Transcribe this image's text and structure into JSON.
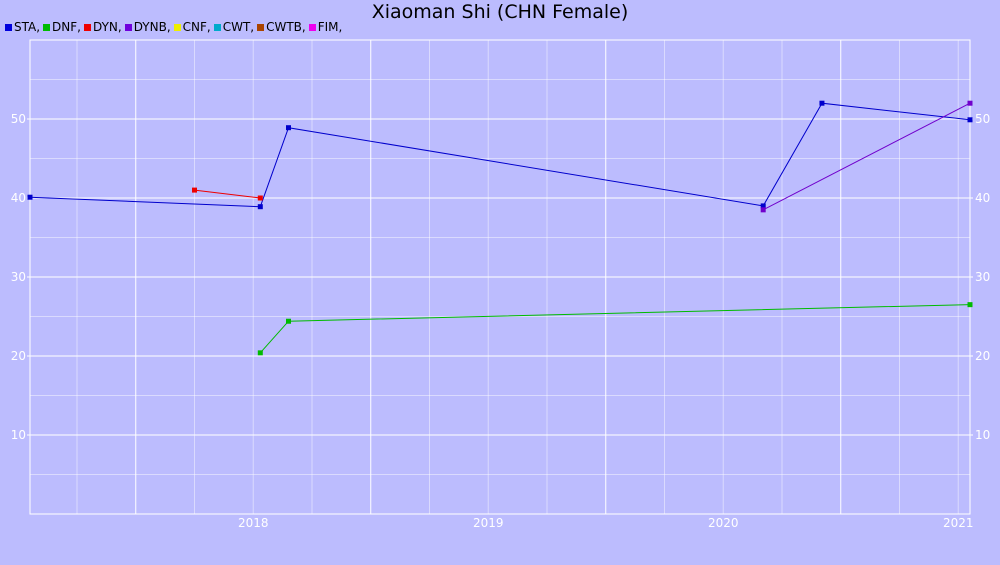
{
  "chart_data": {
    "type": "line",
    "title": "Xiaoman Shi (CHN Female)",
    "xlabel": "",
    "ylabel": "",
    "xlim": [
      2017.55,
      2021.55
    ],
    "ylim": [
      0,
      60
    ],
    "grid": true,
    "legend_placement": "top-left",
    "x_ticks": [
      {
        "value": 2018,
        "label": "2018"
      },
      {
        "value": 2019,
        "label": "2019"
      },
      {
        "value": 2020,
        "label": "2020"
      },
      {
        "value": 2021,
        "label": "2021"
      }
    ],
    "y_ticks": [
      10,
      20,
      30,
      40,
      50
    ],
    "legend": [
      {
        "label": "STA,",
        "color": "#0000dd"
      },
      {
        "label": "DNF,",
        "color": "#00bb00"
      },
      {
        "label": "DYN,",
        "color": "#ee0000"
      },
      {
        "label": "DYNB,",
        "color": "#7000dd"
      },
      {
        "label": "CNF,",
        "color": "#eeee00"
      },
      {
        "label": "CWT,",
        "color": "#00aacc"
      },
      {
        "label": "CWTB,",
        "color": "#aa4400"
      },
      {
        "label": "FIM,",
        "color": "#ee00ee"
      }
    ],
    "series": [
      {
        "name": "STA",
        "color": "#0000cc",
        "points": [
          [
            2017.55,
            40.1
          ],
          [
            2018.53,
            38.9
          ],
          [
            2018.65,
            48.9
          ],
          [
            2020.67,
            39.0
          ],
          [
            2020.92,
            52.0
          ],
          [
            2021.55,
            49.9
          ]
        ]
      },
      {
        "name": "DNF",
        "color": "#00bb00",
        "points": [
          [
            2018.53,
            20.4
          ],
          [
            2018.65,
            24.4
          ],
          [
            2021.55,
            26.5
          ]
        ]
      },
      {
        "name": "DYN",
        "color": "#ee0000",
        "points": [
          [
            2018.25,
            41.0
          ],
          [
            2018.53,
            40.0
          ]
        ]
      },
      {
        "name": "DYNB",
        "color": "#7000cc",
        "points": [
          [
            2020.67,
            38.5
          ],
          [
            2021.55,
            52.0
          ]
        ]
      }
    ]
  }
}
